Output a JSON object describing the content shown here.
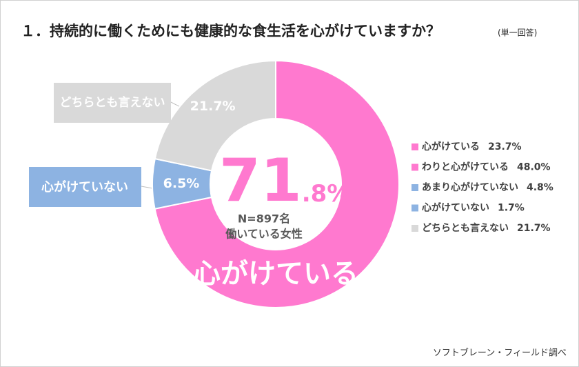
{
  "chart_data": {
    "type": "donut",
    "title": "１．持続的に働くためにも健康的な食生活を心がけていますか？",
    "subtitle": "(単一回答)",
    "categories": [
      "心がけている",
      "心がけていない",
      "どちらとも言えない"
    ],
    "values": [
      71.8,
      6.5,
      21.7
    ],
    "value_labels": [
      null,
      "6.5%",
      "21.7%"
    ],
    "colors": [
      "#ff79cf",
      "#8db3e2",
      "#d9d9d9"
    ],
    "center_value_parts": [
      "71",
      ".8%"
    ],
    "center_notes": [
      "N=897名",
      "働いている女性"
    ],
    "legend": {
      "names": [
        "心がけている",
        "わりと心がけている",
        "あまり心がけていない",
        "心がけていない",
        "どちらとも言えない"
      ],
      "values": [
        23.7,
        48.0,
        4.8,
        1.7,
        21.7
      ],
      "value_labels": [
        "23.7%",
        "48.0%",
        "4.8%",
        "1.7%",
        "21.7%"
      ],
      "colors": [
        "#ff79cf",
        "#ff79cf",
        "#8db3e2",
        "#8db3e2",
        "#d9d9d9"
      ]
    },
    "source": "ソフトブレーン・フィールド調べ"
  }
}
